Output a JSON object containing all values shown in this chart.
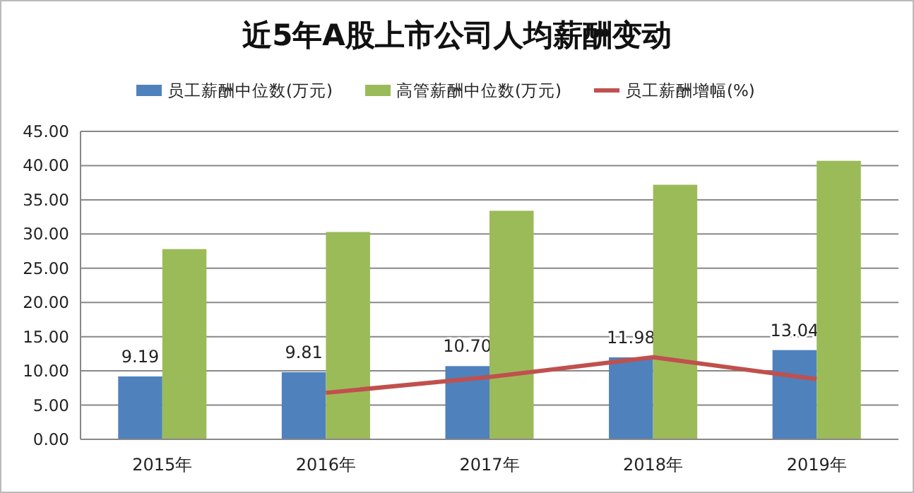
{
  "chart_data": {
    "type": "bar",
    "title": "近5年A股上市公司人均薪酬变动",
    "categories": [
      "2015年",
      "2016年",
      "2017年",
      "2018年",
      "2019年"
    ],
    "series": [
      {
        "name": "员工薪酬中位数(万元)",
        "color": "#4f81bd",
        "values": [
          9.19,
          9.81,
          10.7,
          11.98,
          13.04
        ],
        "value_labels": [
          "9.19",
          "9.81",
          "10.70",
          "11.98",
          "13.04"
        ]
      },
      {
        "name": "高管薪酬中位数(万元)",
        "color": "#9bbb59",
        "values": [
          27.8,
          30.3,
          33.4,
          37.2,
          40.7
        ]
      },
      {
        "name": "员工薪酬增幅(%)",
        "type": "line",
        "color": "#c0504d",
        "values": [
          null,
          6.8,
          9.1,
          12.0,
          8.8
        ]
      }
    ],
    "ylim": [
      0,
      45
    ],
    "yticks": [
      {
        "value": 0,
        "label": "0.00"
      },
      {
        "value": 5,
        "label": "5.00"
      },
      {
        "value": 10,
        "label": "10.00"
      },
      {
        "value": 15,
        "label": "15.00"
      },
      {
        "value": 20,
        "label": "20.00"
      },
      {
        "value": 25,
        "label": "25.00"
      },
      {
        "value": 30,
        "label": "30.00"
      },
      {
        "value": 35,
        "label": "35.00"
      },
      {
        "value": 40,
        "label": "40.00"
      },
      {
        "value": 45,
        "label": "45.00"
      }
    ],
    "grid": "y",
    "legend": "top",
    "marker": "none",
    "line_style": "solid"
  }
}
